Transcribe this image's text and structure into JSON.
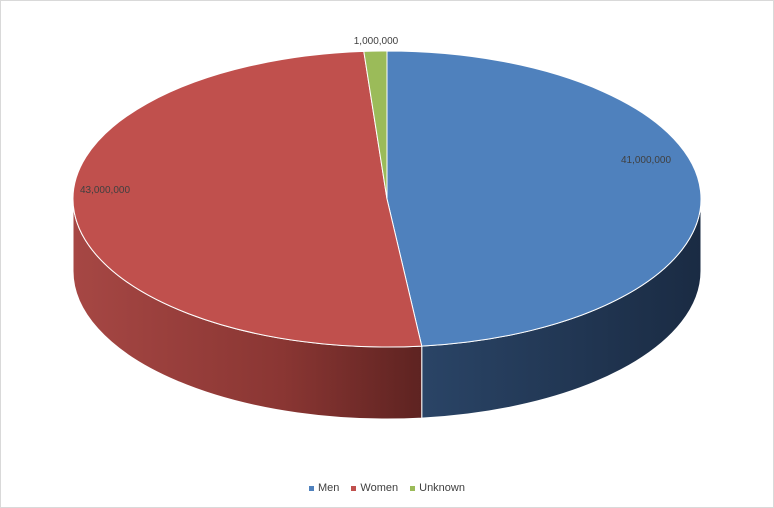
{
  "chart_data": {
    "type": "pie",
    "title": "",
    "categories": [
      "Men",
      "Women",
      "Unknown"
    ],
    "values": [
      41000000,
      43000000,
      1000000
    ],
    "data_labels": [
      "41,000,000",
      "43,000,000",
      "1,000,000"
    ],
    "colors": [
      "#4f81bd",
      "#c0504d",
      "#9bbb59"
    ],
    "side_colors": [
      "#1f3350",
      "#7a2a28",
      "#5b7030"
    ],
    "legend_position": "bottom",
    "three_d": true
  },
  "legend": {
    "items": [
      {
        "label": "Men",
        "color": "#4f81bd"
      },
      {
        "label": "Women",
        "color": "#c0504d"
      },
      {
        "label": "Unknown",
        "color": "#9bbb59"
      }
    ]
  }
}
